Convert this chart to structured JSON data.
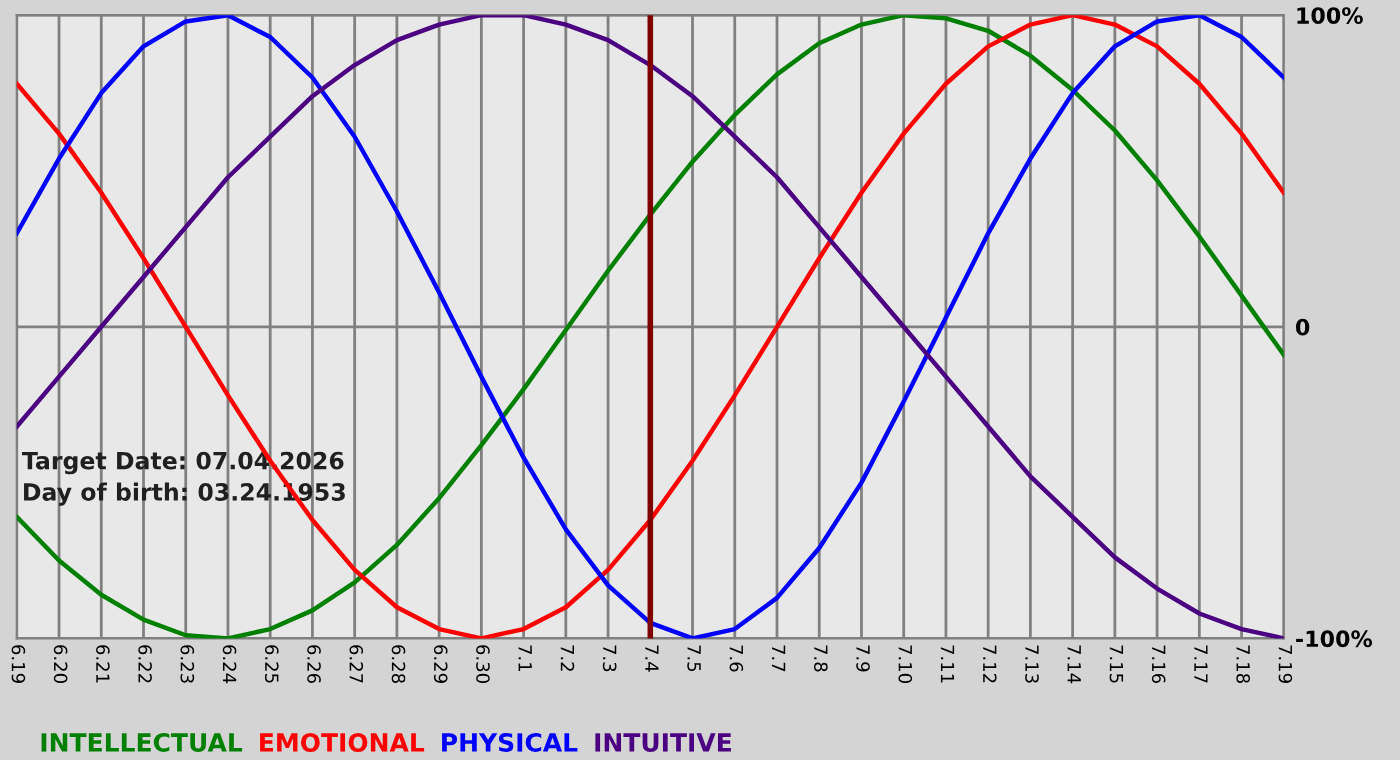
{
  "chart_data": {
    "type": "line",
    "categories": [
      "6.19",
      "6.20",
      "6.21",
      "6.22",
      "6.23",
      "6.24",
      "6.25",
      "6.26",
      "6.27",
      "6.28",
      "6.29",
      "6.30",
      "7.1",
      "7.2",
      "7.3",
      "7.4",
      "7.5",
      "7.6",
      "7.7",
      "7.8",
      "7.9",
      "7.10",
      "7.11",
      "7.12",
      "7.13",
      "7.14",
      "7.15",
      "7.16",
      "7.17",
      "7.18",
      "7.19"
    ],
    "series": [
      {
        "name": "INTELLECTUAL",
        "color": "#008000",
        "values": [
          -61,
          -75,
          -86,
          -94,
          -99,
          -100,
          -97,
          -91,
          -82,
          -70,
          -55,
          -38,
          -20,
          -1,
          18,
          36,
          53,
          68,
          81,
          91,
          97,
          100,
          99,
          95,
          87,
          76,
          63,
          47,
          29,
          10,
          -9
        ]
      },
      {
        "name": "EMOTIONAL",
        "color": "#ff0000",
        "values": [
          78,
          62,
          43,
          22,
          0,
          -22,
          -43,
          -62,
          -78,
          -90,
          -97,
          -100,
          -97,
          -90,
          -78,
          -62,
          -43,
          -22,
          0,
          22,
          43,
          62,
          78,
          90,
          97,
          100,
          97,
          90,
          78,
          62,
          43
        ]
      },
      {
        "name": "PHYSICAL",
        "color": "#0000ff",
        "values": [
          30,
          54,
          75,
          90,
          98,
          100,
          93,
          80,
          61,
          37,
          11,
          -16,
          -42,
          -65,
          -83,
          -95,
          -100,
          -97,
          -87,
          -71,
          -50,
          -24,
          3,
          30,
          54,
          75,
          90,
          98,
          100,
          93,
          80
        ]
      },
      {
        "name": "INTUITIVE",
        "color": "#4b0082",
        "values": [
          -32,
          -16,
          0,
          16,
          32,
          48,
          61,
          74,
          84,
          92,
          97,
          100,
          100,
          97,
          92,
          84,
          74,
          61,
          48,
          32,
          16,
          0,
          -16,
          -32,
          -48,
          -61,
          -74,
          -84,
          -92,
          -97,
          -100
        ]
      }
    ],
    "ylim": [
      -100,
      100
    ],
    "yticks": [
      {
        "value": 100,
        "label": "100%"
      },
      0,
      {
        "value": -100,
        "label": "-100%"
      }
    ],
    "ref_lines": [
      {
        "axis": "x",
        "value": "7.4",
        "color": "#800000"
      }
    ],
    "annotations": [
      "Target Date: 07.04.2026",
      "Day of birth: 03.24.1953"
    ],
    "grid": true,
    "legend": "bottom left",
    "marker": "none",
    "line_style": "solid"
  }
}
